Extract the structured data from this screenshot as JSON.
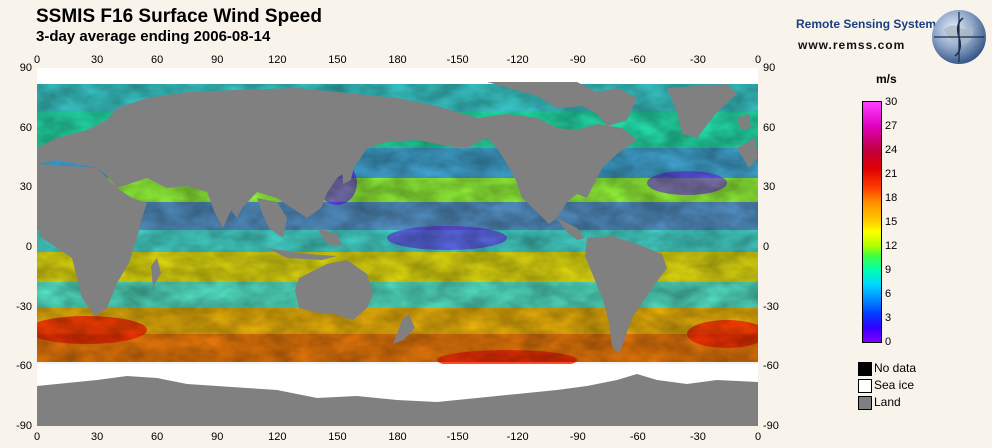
{
  "header": {
    "title": "SSMIS F16 Surface Wind Speed",
    "subtitle": "3-day average ending 2006-08-14"
  },
  "branding": {
    "name": "Remote Sensing Systems",
    "url": "www.remss.com"
  },
  "map": {
    "x_ticks": [
      "0",
      "30",
      "60",
      "90",
      "120",
      "150",
      "180",
      "-150",
      "-120",
      "-90",
      "-60",
      "-30",
      "0"
    ],
    "y_ticks": [
      "90",
      "60",
      "30",
      "0",
      "-30",
      "-60",
      "-90"
    ],
    "colors": {
      "land": "#808080",
      "sea_ice": "#ffffff",
      "no_data": "#000000"
    }
  },
  "colorbar": {
    "unit": "m/s",
    "min": 0,
    "max": 30,
    "labels": [
      "30",
      "27",
      "24",
      "21",
      "18",
      "15",
      "12",
      "9",
      "6",
      "3",
      "0"
    ]
  },
  "legend": [
    {
      "label": "No data",
      "color": "#000000"
    },
    {
      "label": "Sea ice",
      "color": "#ffffff"
    },
    {
      "label": "Land",
      "color": "#808080"
    }
  ]
}
